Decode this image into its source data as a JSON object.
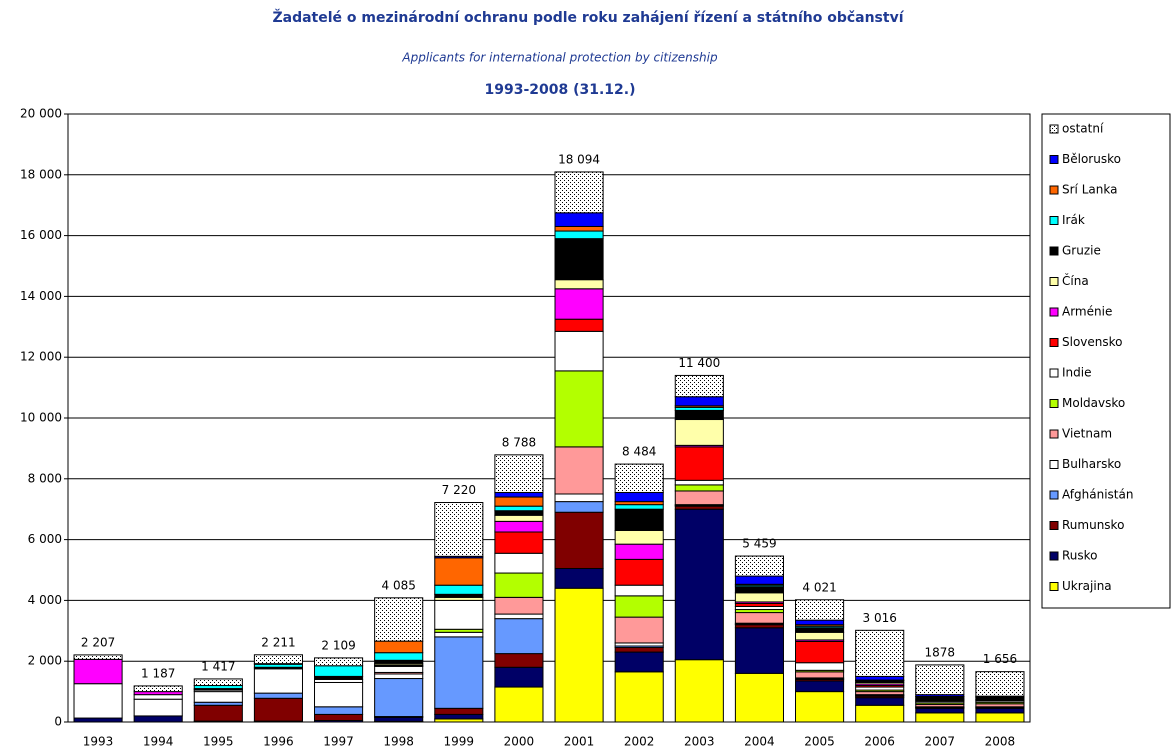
{
  "chart_data": {
    "type": "stacked_bar",
    "title": "Žadatelé o mezinárodní ochranu podle roku zahájení řízení a státního občanství",
    "subtitle": "Applicants for international protection by citizenship",
    "period": "1993-2008 (31.12.)",
    "categories": [
      "1993",
      "1994",
      "1995",
      "1996",
      "1997",
      "1998",
      "1999",
      "2000",
      "2001",
      "2002",
      "2003",
      "2004",
      "2005",
      "2006",
      "2007",
      "2008"
    ],
    "ylim": [
      0,
      20000
    ],
    "yticks": [
      0,
      {
        "value": 2000,
        "label": "2 000"
      },
      {
        "value": 4000,
        "label": "4 000"
      },
      {
        "value": 6000,
        "label": "6 000"
      },
      {
        "value": 8000,
        "label": "8 000"
      },
      {
        "value": 10000,
        "label": "10 000"
      },
      {
        "value": 12000,
        "label": "12 000"
      },
      {
        "value": 14000,
        "label": "14 000"
      },
      {
        "value": 16000,
        "label": "16 000"
      },
      {
        "value": 18000,
        "label": "18 000"
      },
      {
        "value": 20000,
        "label": "20 000"
      }
    ],
    "grid": true,
    "legend": "right",
    "series": [
      {
        "name": "Ukrajina",
        "color": "#ffff00",
        "values": [
          0,
          0,
          0,
          0,
          0,
          20,
          100,
          1150,
          4400,
          1650,
          2050,
          1600,
          1000,
          550,
          300,
          300
        ]
      },
      {
        "name": "Rusko",
        "color": "#000066",
        "values": [
          130,
          200,
          30,
          30,
          50,
          130,
          150,
          650,
          650,
          650,
          4950,
          1500,
          350,
          250,
          150,
          150
        ]
      },
      {
        "name": "Rumunsko",
        "color": "#800000",
        "values": [
          0,
          0,
          520,
          750,
          200,
          30,
          200,
          450,
          1850,
          150,
          100,
          100,
          50,
          50,
          20,
          20
        ]
      },
      {
        "name": "Afghánistán",
        "color": "#6699ff",
        "values": [
          0,
          0,
          100,
          170,
          250,
          1250,
          2350,
          1150,
          350,
          50,
          20,
          20,
          20,
          20,
          10,
          20
        ]
      },
      {
        "name": "Bulharsko",
        "color": "#ffffff",
        "values": [
          1130,
          550,
          350,
          800,
          800,
          150,
          150,
          150,
          250,
          100,
          30,
          30,
          30,
          30,
          20,
          10
        ]
      },
      {
        "name": "Vietnam",
        "color": "#ff9999",
        "values": [
          0,
          0,
          0,
          0,
          0,
          50,
          0,
          550,
          1550,
          850,
          450,
          350,
          200,
          100,
          80,
          100
        ]
      },
      {
        "name": "Moldavsko",
        "color": "#b3ff00",
        "values": [
          0,
          0,
          0,
          0,
          0,
          0,
          100,
          800,
          2500,
          700,
          200,
          100,
          50,
          50,
          50,
          50
        ]
      },
      {
        "name": "Indie",
        "color": "#ffffff",
        "values": [
          0,
          150,
          50,
          0,
          100,
          200,
          950,
          650,
          1300,
          350,
          150,
          100,
          250,
          100,
          50,
          50
        ]
      },
      {
        "name": "Slovensko",
        "color": "#ff0000",
        "values": [
          0,
          0,
          20,
          0,
          0,
          20,
          0,
          700,
          400,
          850,
          1100,
          100,
          700,
          50,
          30,
          20
        ]
      },
      {
        "name": "Arménie",
        "color": "#ff00ff",
        "values": [
          800,
          100,
          0,
          0,
          0,
          30,
          0,
          350,
          1000,
          500,
          50,
          50,
          50,
          50,
          30,
          20
        ]
      },
      {
        "name": "Čína",
        "color": "#ffffaa",
        "values": [
          0,
          0,
          0,
          0,
          0,
          50,
          100,
          200,
          300,
          450,
          850,
          300,
          250,
          50,
          30,
          20
        ]
      },
      {
        "name": "Gruzie",
        "color": "#000000",
        "values": [
          0,
          0,
          30,
          50,
          100,
          100,
          100,
          150,
          1350,
          700,
          300,
          200,
          150,
          50,
          50,
          50
        ]
      },
      {
        "name": "Irák",
        "color": "#00ffff",
        "values": [
          0,
          0,
          100,
          100,
          350,
          250,
          300,
          150,
          250,
          150,
          100,
          50,
          50,
          20,
          10,
          10
        ]
      },
      {
        "name": "Srí Lanka",
        "color": "#ff6600",
        "values": [
          0,
          0,
          0,
          20,
          0,
          380,
          900,
          300,
          150,
          100,
          50,
          30,
          50,
          10,
          10,
          10
        ]
      },
      {
        "name": "Bělorusko",
        "color": "#0000ff",
        "values": [
          0,
          0,
          0,
          0,
          0,
          0,
          50,
          150,
          450,
          300,
          300,
          270,
          150,
          120,
          60,
          20
        ]
      },
      {
        "name": "ostatní",
        "color": "#ffffff",
        "pattern": "dotted",
        "values": [
          147,
          187,
          217,
          291,
          259,
          1425,
          1770,
          1238,
          1344,
          934,
          700,
          659,
          671,
          1516,
          978,
          806
        ]
      }
    ],
    "totals": {
      "values": [
        2207,
        1187,
        1417,
        2211,
        2109,
        4085,
        7220,
        8788,
        18094,
        8484,
        11400,
        5459,
        4021,
        3016,
        1878,
        1656
      ],
      "value_labels": [
        "2 207",
        "1 187",
        "1 417",
        "2 211",
        "2 109",
        "4 085",
        "7 220",
        "8 788",
        "18 094",
        "8 484",
        "11 400",
        "5 459",
        "4 021",
        "3 016",
        "1878",
        "1 656"
      ]
    }
  }
}
